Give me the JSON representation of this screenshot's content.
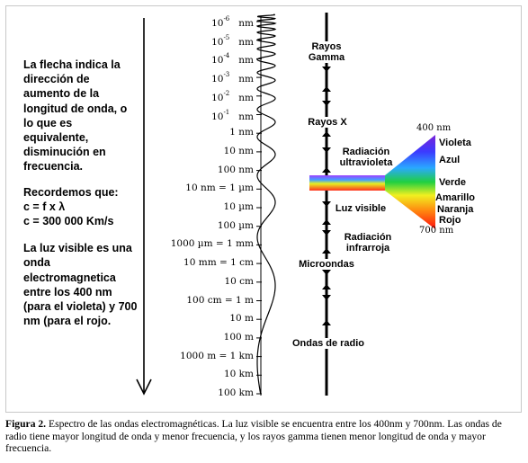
{
  "note": {
    "p1": "La flecha indica la dirección de aumento de la longitud de onda, o lo que es equivalente, disminución en frecuencia.",
    "p2_line1": "Recordemos que:",
    "p2_line2": "c = f x λ",
    "p2_line3": "c = 300 000 Km/s",
    "p3": "La luz visible es una onda electromagnetica entre los 400 nm (para el violeta) y 700 nm (para el rojo."
  },
  "scale": [
    {
      "mant": "10",
      "exp": "-6",
      "unit": "nm"
    },
    {
      "mant": "10",
      "exp": "-5",
      "unit": "nm"
    },
    {
      "mant": "10",
      "exp": "-4",
      "unit": "nm"
    },
    {
      "mant": "10",
      "exp": "-3",
      "unit": "nm"
    },
    {
      "mant": "10",
      "exp": "-2",
      "unit": "nm"
    },
    {
      "mant": "10",
      "exp": "-1",
      "unit": "nm"
    },
    {
      "text": "1 nm"
    },
    {
      "text": "10 nm"
    },
    {
      "text": "100 nm"
    },
    {
      "text": "10   nm = 1 µm"
    },
    {
      "text": "10 µm"
    },
    {
      "text": "100 µm"
    },
    {
      "text": "1000 µm = 1 mm"
    },
    {
      "text": "10 mm = 1 cm"
    },
    {
      "text": "10 cm"
    },
    {
      "text": "100 cm = 1 m"
    },
    {
      "text": "10 m"
    },
    {
      "text": "100 m"
    },
    {
      "text": "1000 m = 1 km"
    },
    {
      "text": "10 km"
    },
    {
      "text": "100 km"
    }
  ],
  "bands": {
    "gamma": "Rayos\nGamma",
    "xray": "Rayos X",
    "uv": "Radiación\nultravioleta",
    "visible": "Luz visible",
    "ir": "Radiación\ninfrarroja",
    "micro": "Microondas",
    "radio": "Ondas de radio"
  },
  "spectrum": {
    "top_nm": "400 nm",
    "bottom_nm": "700 nm",
    "colors": [
      "Violeta",
      "Azul",
      "Verde",
      "Amarillo",
      "Naranja",
      "Rojo"
    ]
  },
  "caption": {
    "label": "Figura 2.",
    "text": " Espectro de las ondas electromagnéticas. La luz visible se encuentra entre los 400nm y 700nm. Las ondas de radio tiene mayor longitud de onda y menor frecuencia, y los rayos gamma tienen menor longitud de onda y mayor frecuencia."
  }
}
